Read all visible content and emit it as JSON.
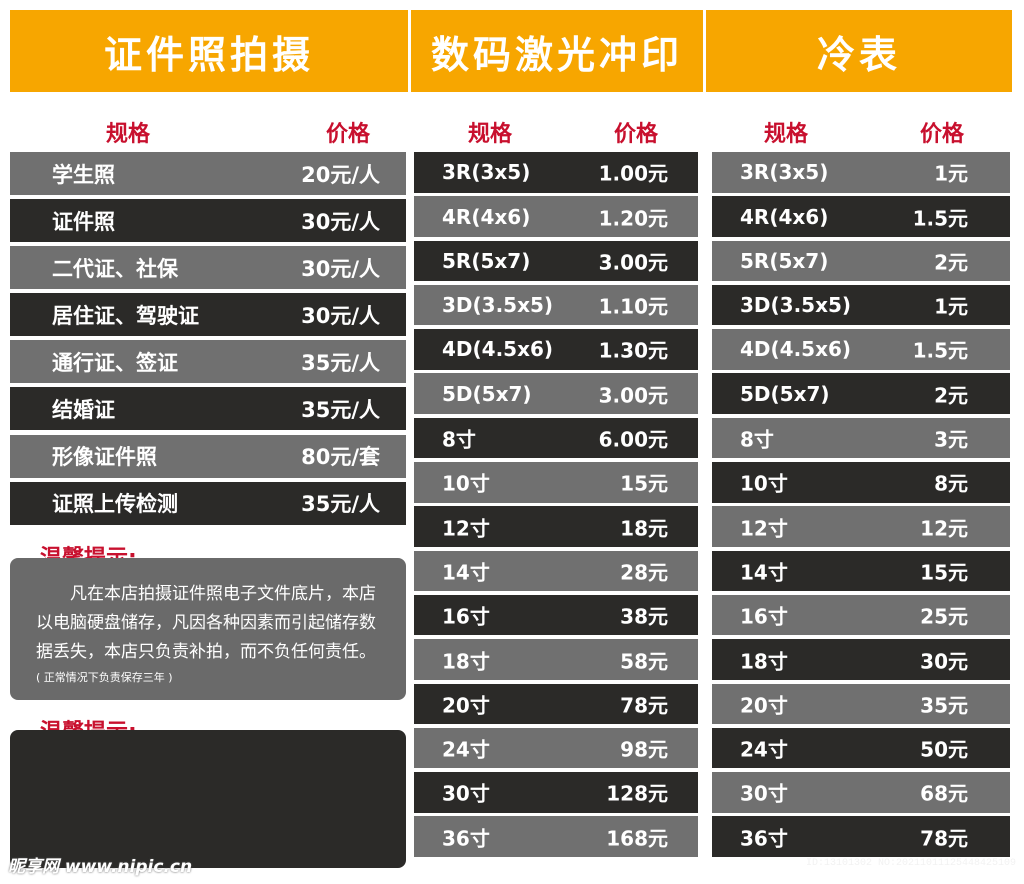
{
  "headers": {
    "id_photo": "证件照拍摄",
    "digital_print": "数码激光冲印",
    "cold_laminate": "冷表"
  },
  "labels": {
    "spec": "规格",
    "price": "价格"
  },
  "id_photo_items": [
    {
      "name": "学生照",
      "price": "20元/人"
    },
    {
      "name": "证件照",
      "price": "30元/人"
    },
    {
      "name": "二代证、社保",
      "price": "30元/人"
    },
    {
      "name": "居住证、驾驶证",
      "price": "30元/人"
    },
    {
      "name": "通行证、签证",
      "price": "35元/人"
    },
    {
      "name": "结婚证",
      "price": "35元/人"
    },
    {
      "name": "形像证件照",
      "price": "80元/套"
    },
    {
      "name": "证照上传检测",
      "price": "35元/人"
    }
  ],
  "digital_print_items": [
    {
      "name": "3R(3x5)",
      "price": "1.00元"
    },
    {
      "name": "4R(4x6)",
      "price": "1.20元"
    },
    {
      "name": "5R(5x7)",
      "price": "3.00元"
    },
    {
      "name": "3D(3.5x5)",
      "price": "1.10元"
    },
    {
      "name": "4D(4.5x6)",
      "price": "1.30元"
    },
    {
      "name": "5D(5x7)",
      "price": "3.00元"
    },
    {
      "name": "8寸",
      "price": "6.00元"
    },
    {
      "name": "10寸",
      "price": "15元"
    },
    {
      "name": "12寸",
      "price": "18元"
    },
    {
      "name": "14寸",
      "price": "28元"
    },
    {
      "name": "16寸",
      "price": "38元"
    },
    {
      "name": "18寸",
      "price": "58元"
    },
    {
      "name": "20寸",
      "price": "78元"
    },
    {
      "name": "24寸",
      "price": "98元"
    },
    {
      "name": "30寸",
      "price": "128元"
    },
    {
      "name": "36寸",
      "price": "168元"
    }
  ],
  "cold_laminate_items": [
    {
      "name": "3R(3x5)",
      "price": "1元"
    },
    {
      "name": "4R(4x6)",
      "price": "1.5元"
    },
    {
      "name": "5R(5x7)",
      "price": "2元"
    },
    {
      "name": "3D(3.5x5)",
      "price": "1元"
    },
    {
      "name": "4D(4.5x6)",
      "price": "1.5元"
    },
    {
      "name": "5D(5x7)",
      "price": "2元"
    },
    {
      "name": "8寸",
      "price": "3元"
    },
    {
      "name": "10寸",
      "price": "8元"
    },
    {
      "name": "12寸",
      "price": "12元"
    },
    {
      "name": "14寸",
      "price": "15元"
    },
    {
      "name": "16寸",
      "price": "25元"
    },
    {
      "name": "18寸",
      "price": "30元"
    },
    {
      "name": "20寸",
      "price": "35元"
    },
    {
      "name": "24寸",
      "price": "50元"
    },
    {
      "name": "30寸",
      "price": "68元"
    },
    {
      "name": "36寸",
      "price": "78元"
    }
  ],
  "tips": {
    "title": "温馨提示:",
    "text": "凡在本店拍摄证件照电子文件底片，本店以电脑硬盘储存，凡因各种因素而引起储存数据丢失，本店只负责补拍，而不负任何责任。",
    "note": "( 正常情况下负责保存三年 )",
    "title2": "温馨提示:"
  },
  "watermark": "昵享网 www.nipic.cn",
  "id_tag": "ID:13101302 NO:20211011125448425109"
}
